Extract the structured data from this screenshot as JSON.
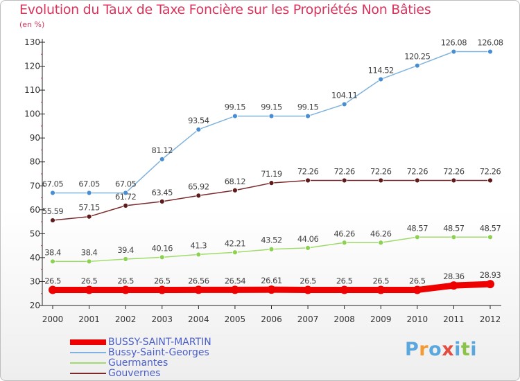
{
  "title": "Evolution du Taux de Taxe Foncière sur les Propriétés Non Bâties",
  "unit_label": "(en %)",
  "logo": {
    "letters": [
      "P",
      "r",
      "o",
      "x",
      "i",
      "t",
      "i"
    ],
    "colors": [
      "#5aa7de",
      "#f29a34",
      "#5aa7de",
      "#e44c3f",
      "#5aa7de",
      "#8bc34a",
      "#5aa7de"
    ]
  },
  "chart_data": {
    "type": "line",
    "title": "Evolution du Taux de Taxe Foncière sur les Propriétés Non Bâties",
    "ylabel": "(en %)",
    "xlabel": "",
    "x": [
      "2000",
      "2001",
      "2002",
      "2003",
      "2004",
      "2005",
      "2006",
      "2007",
      "2008",
      "2009",
      "2010",
      "2011",
      "2012"
    ],
    "ylim": [
      20,
      130
    ],
    "yticks": [
      20,
      30,
      40,
      50,
      60,
      70,
      80,
      90,
      100,
      110,
      120,
      130
    ],
    "grid": false,
    "legend_position": "bottom-left",
    "series": [
      {
        "name": "BUSSY-SAINT-MARTIN",
        "color": "#ee0000",
        "values": [
          26.5,
          26.5,
          26.5,
          26.5,
          26.56,
          26.54,
          26.61,
          26.5,
          26.5,
          26.5,
          26.5,
          28.36,
          28.93
        ],
        "labels": [
          "26.5",
          "26.5",
          "26.5",
          "26.5",
          "26.56",
          "26.54",
          "26.61",
          "26.5",
          "26.5",
          "26.5",
          "26.5",
          "28.36",
          "28.93"
        ]
      },
      {
        "name": "Bussy-Saint-Georges",
        "color": "#7fb2dc",
        "marker": "#4a8ed2",
        "values": [
          67.05,
          67.05,
          67.05,
          81.12,
          93.54,
          99.15,
          99.15,
          99.15,
          104.11,
          114.52,
          120.25,
          126.08,
          126.08
        ],
        "labels": [
          "67.05",
          "67.05",
          "67.05",
          "81.12",
          "93.54",
          "99.15",
          "99.15",
          "99.15",
          "104.11",
          "114.52",
          "120.25",
          "126.08",
          "126.08"
        ]
      },
      {
        "name": "Guermantes",
        "color": "#9fdb6b",
        "marker": "#8cd152",
        "values": [
          38.4,
          38.4,
          39.4,
          40.16,
          41.3,
          42.21,
          43.52,
          44.06,
          46.26,
          46.26,
          48.57,
          48.57,
          48.57
        ],
        "labels": [
          "38.4",
          "38.4",
          "39.4",
          "40.16",
          "41.3",
          "42.21",
          "43.52",
          "44.06",
          "46.26",
          "46.26",
          "48.57",
          "48.57",
          "48.57"
        ]
      },
      {
        "name": "Gouvernes",
        "color": "#7a2a2a",
        "marker": "#5e1b1b",
        "values": [
          55.59,
          57.15,
          61.72,
          63.45,
          65.92,
          68.12,
          71.19,
          72.26,
          72.26,
          72.26,
          72.26,
          72.26,
          72.26
        ],
        "labels": [
          "55.59",
          "57.15",
          "61.72",
          "63.45",
          "65.92",
          "68.12",
          "71.19",
          "72.26",
          "72.26",
          "72.26",
          "72.26",
          "72.26",
          "72.26"
        ]
      }
    ]
  }
}
